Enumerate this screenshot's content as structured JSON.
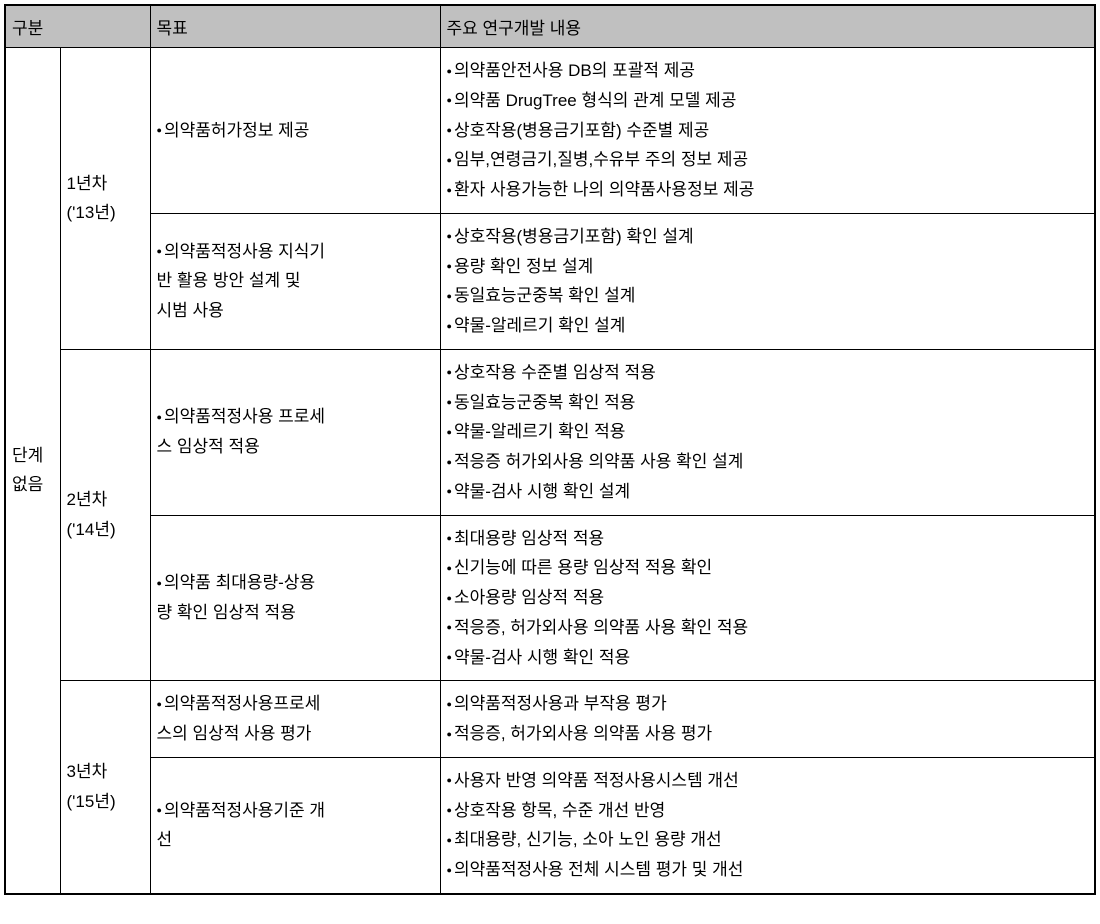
{
  "headers": {
    "category": "구분",
    "goal": "목표",
    "content": "주요 연구개발 내용"
  },
  "stage": {
    "label_line1": "단계",
    "label_line2": "없음"
  },
  "years": {
    "y1": {
      "label_line1": "1년차",
      "label_line2": "('13년)",
      "rows": [
        {
          "goal": "의약품허가정보  제공",
          "items": [
            "의약품안전사용 DB의 포괄적 제공",
            "의약품 DrugTree 형식의 관계 모델 제공",
            "상호작용(병용금기포함) 수준별 제공",
            "임부,연령금기,질병,수유부 주의 정보 제공",
            "환자 사용가능한 나의 의약품사용정보 제공"
          ]
        },
        {
          "goal_line1": "의약품적정사용 지식기",
          "goal_line2": "반 활용 방안 설계 및",
          "goal_line3": "시범 사용",
          "items": [
            "상호작용(병용금기포함) 확인 설계",
            "용량 확인 정보 설계",
            "동일효능군중복 확인 설계",
            "약물-알레르기 확인 설계"
          ]
        }
      ]
    },
    "y2": {
      "label_line1": "2년차",
      "label_line2": "('14년)",
      "rows": [
        {
          "goal_line1": "의약품적정사용 프로세",
          "goal_line2": "스 임상적 적용",
          "items": [
            "상호작용 수준별 임상적 적용",
            "동일효능군중복 확인 적용",
            "약물-알레르기 확인 적용",
            "적응증 허가외사용 의약품 사용 확인 설계",
            "약물-검사 시행 확인 설계"
          ]
        },
        {
          "goal_line1": "의약품 최대용량-상용",
          "goal_line2": "량 확인 임상적 적용",
          "items": [
            "최대용량 임상적 적용",
            "신기능에 따른 용량 임상적 적용 확인",
            "소아용량 임상적 적용",
            "적응증, 허가외사용 의약품 사용 확인 적용",
            "약물-검사 시행 확인 적용"
          ]
        }
      ]
    },
    "y3": {
      "label_line1": "3년차",
      "label_line2": "('15년)",
      "rows": [
        {
          "goal_line1": "의약품적정사용프로세",
          "goal_line2": "스의 임상적 사용 평가",
          "items": [
            "의약품적정사용과 부작용 평가",
            "적응증, 허가외사용 의약품 사용 평가"
          ]
        },
        {
          "goal_line1": "의약품적정사용기준 개",
          "goal_line2": "선",
          "items": [
            "사용자 반영 의약품 적정사용시스템 개선",
            "상호작용 항목, 수준 개선 반영",
            "최대용량, 신기능, 소아 노인 용량 개선",
            "의약품적정사용 전체 시스템 평가 및 개선"
          ]
        }
      ]
    }
  }
}
